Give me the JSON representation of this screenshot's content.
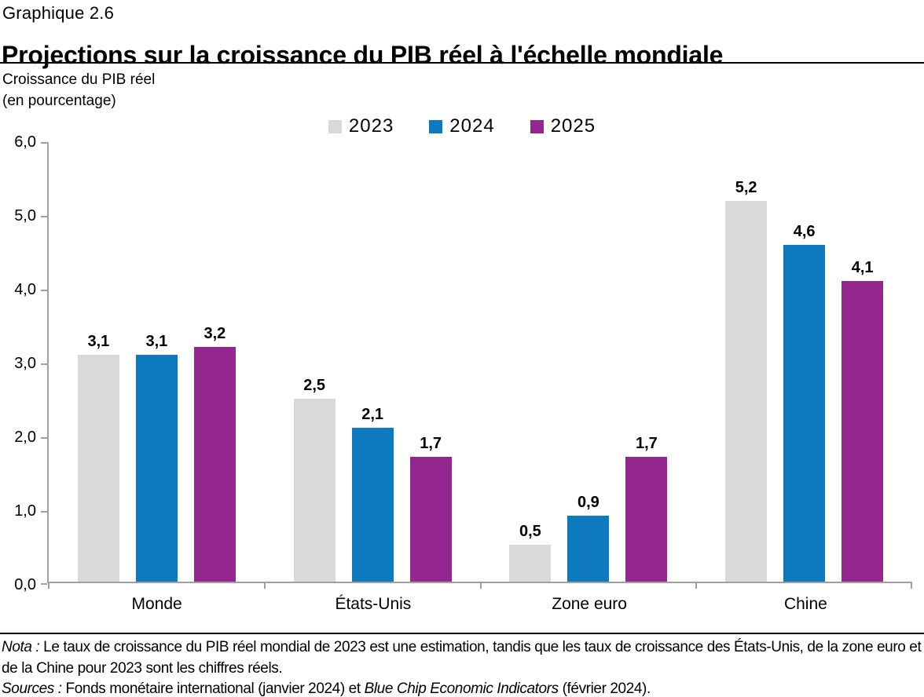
{
  "header": {
    "pretitle": "Graphique 2.6",
    "title": "Projections sur la croissance du PIB réel à l'échelle mondiale"
  },
  "subtitle": {
    "line1": "Croissance du PIB réel",
    "line2": "(en pourcentage)"
  },
  "chart_data": {
    "type": "bar",
    "title": "Projections sur la croissance du PIB réel à l'échelle mondiale",
    "ylabel": "Croissance du PIB réel (en pourcentage)",
    "categories": [
      "Monde",
      "États-Unis",
      "Zone euro",
      "Chine"
    ],
    "series": [
      {
        "name": "2023",
        "color": "#d9d9d9",
        "values": [
          3.1,
          2.5,
          0.5,
          5.2
        ]
      },
      {
        "name": "2024",
        "color": "#0d79be",
        "values": [
          3.1,
          2.1,
          0.9,
          4.6
        ]
      },
      {
        "name": "2025",
        "color": "#93278f",
        "values": [
          3.2,
          1.7,
          1.7,
          4.1
        ]
      }
    ],
    "ylim": [
      0,
      6
    ],
    "ytick_step": 1,
    "ytick_labels": [
      "0,0",
      "1,0",
      "2,0",
      "3,0",
      "4,0",
      "5,0",
      "6,0"
    ],
    "grid": false,
    "legend_position": "top-center",
    "value_labels": true,
    "decimal_separator": ","
  },
  "colors": {
    "axis": "#a0a0a0",
    "separator": "#000000",
    "text": "#000000"
  },
  "notes": {
    "nota_label": "Nota :",
    "nota_text": " Le taux de croissance du PIB réel mondial de 2023 est une estimation, tandis que les taux de croissance des États-Unis, de la zone euro et de la Chine pour 2023 sont les chiffres réels.",
    "sources_label": "Sources :",
    "sources_text_1": " Fonds monétaire international (janvier 2024) et ",
    "sources_italic": "Blue Chip Economic Indicators",
    "sources_text_2": " (février 2024)."
  }
}
